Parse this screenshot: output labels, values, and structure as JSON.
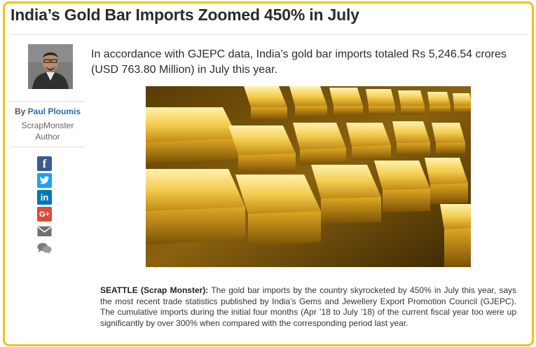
{
  "article": {
    "title": "India’s Gold Bar Imports Zoomed 450% in July",
    "intro": "In accordance with GJEPC data, India’s gold bar imports totaled Rs 5,246.54 crores (USD 763.80 Million) in July this year.",
    "body_lead": "SEATTLE (Scrap Monster):",
    "body_text": " The gold bar imports by the country skyrocketed by 450% in July this year, says the most recent trade statistics published by India's Gems and Jewellery Export Promotion Council (GJEPC). The cumulative imports during the initial four months (Apr ’18 to July ’18) of the current fiscal year too were up significantly by over 300% when compared with the corresponding period last year."
  },
  "author": {
    "by_prefix": "By",
    "name": "Paul Ploumis",
    "org": "ScrapMonster",
    "role": "Author"
  },
  "share_icons": [
    "facebook-icon",
    "twitter-icon",
    "linkedin-icon",
    "google-plus-icon",
    "email-icon",
    "comment-icon"
  ],
  "colors": {
    "border": "#f2c21b",
    "author_link": "#2a6db3",
    "facebook": "#3b5998",
    "twitter": "#1da1f2",
    "linkedin": "#0077b5",
    "google_plus": "#dd4b39",
    "email": "#6f6f6f",
    "comment": "#7c7c7c"
  }
}
